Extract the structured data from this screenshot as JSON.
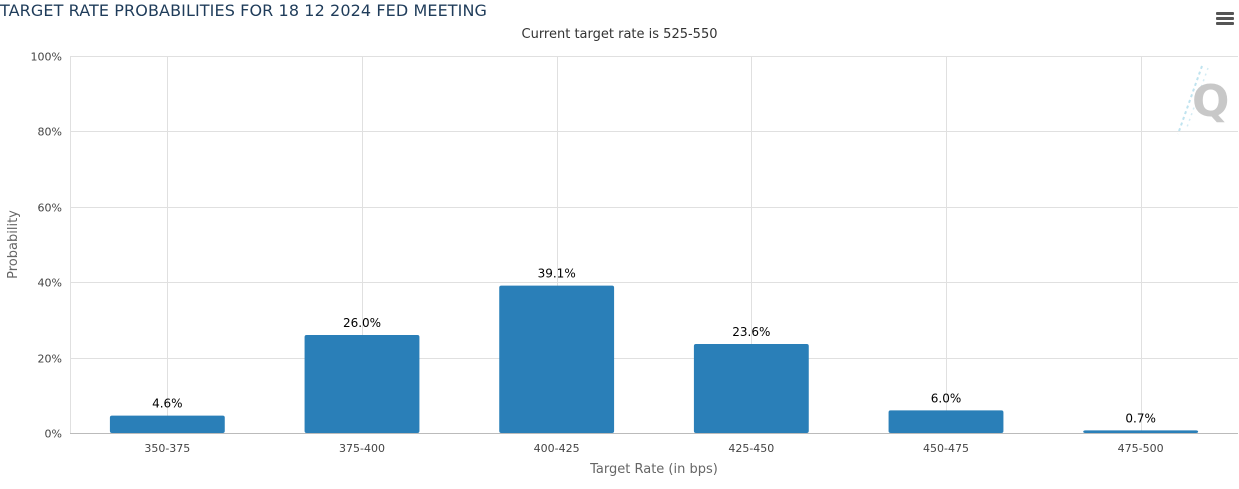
{
  "title": "TARGET RATE PROBABILITIES FOR 18 12 2024 FED MEETING",
  "subtitle": "Current target rate is 525-550",
  "menu_icon": "hamburger-menu-icon",
  "watermark_icon": "q-logo-icon",
  "colors": {
    "bar": "#2a7fb8",
    "grid": "#e0e0e0",
    "axis": "#bbbbbb",
    "title": "#1f3c5a"
  },
  "chart_data": {
    "type": "bar",
    "categories": [
      "350-375",
      "375-400",
      "400-425",
      "425-450",
      "450-475",
      "475-500"
    ],
    "values": [
      4.6,
      26.0,
      39.1,
      23.6,
      6.0,
      0.7
    ],
    "data_labels": [
      "4.6%",
      "26.0%",
      "39.1%",
      "23.6%",
      "6.0%",
      "0.7%"
    ],
    "y_ticks": [
      0,
      20,
      40,
      60,
      80,
      100
    ],
    "y_tick_labels": [
      "0%",
      "20%",
      "40%",
      "60%",
      "80%",
      "100%"
    ],
    "xlabel": "Target Rate (in bps)",
    "ylabel": "Probability",
    "ylim": [
      0,
      100
    ],
    "grid": true,
    "legend": "none"
  }
}
